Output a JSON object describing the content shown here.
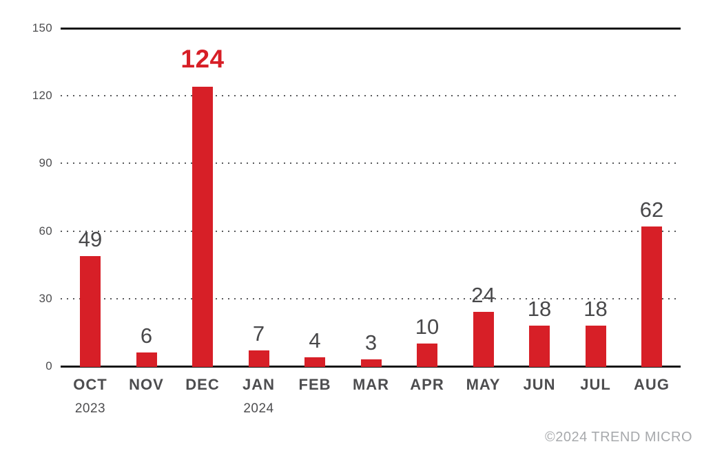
{
  "chart_data": {
    "type": "bar",
    "title": "",
    "xlabel": "",
    "ylabel": "",
    "categories": [
      "OCT",
      "NOV",
      "DEC",
      "JAN",
      "FEB",
      "MAR",
      "APR",
      "MAY",
      "JUN",
      "JUL",
      "AUG"
    ],
    "values": [
      49,
      6,
      124,
      7,
      4,
      3,
      10,
      24,
      18,
      18,
      62
    ],
    "value_labels": [
      "49",
      "6",
      "124",
      "7",
      "4",
      "3",
      "10",
      "24",
      "18",
      "18",
      "62"
    ],
    "year_markers": [
      {
        "index": 0,
        "label": "2023"
      },
      {
        "index": 3,
        "label": "2024"
      }
    ],
    "highlight_index": 2,
    "yticks": [
      0,
      30,
      60,
      90,
      120,
      150
    ],
    "ytick_labels": [
      "0",
      "30",
      "60",
      "90",
      "120",
      "150"
    ],
    "ylim": [
      0,
      150
    ],
    "grid": "dotted horizontal gridlines at 30/60/90/120, solid line at 0 and 150",
    "legend": "none",
    "colors": {
      "bar": "#d71f27",
      "highlight_value_label": "#d71f27",
      "value_label": "#48484a",
      "axis_label": "#4d4d4f",
      "axis_line": "#161616",
      "gridline_dots": "#58595b",
      "copyright": "#a7a9ac",
      "background": "#ffffff"
    }
  },
  "footer": {
    "copyright": "©2024 TREND MICRO"
  }
}
